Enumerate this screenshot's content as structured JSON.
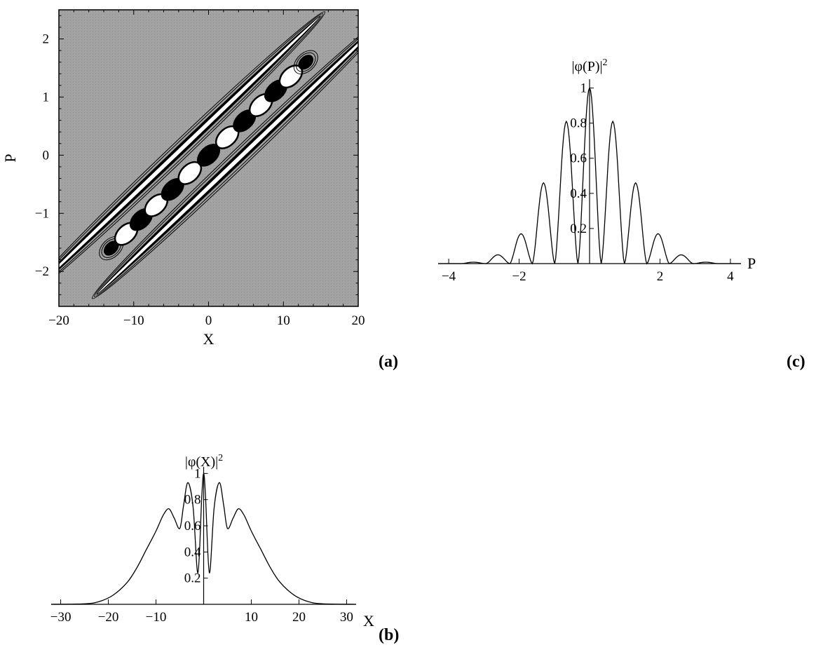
{
  "panel_tags": {
    "a": "(a)",
    "b": "(b)",
    "c": "(c)"
  },
  "chart_data": [
    {
      "id": "a",
      "type": "contour",
      "title": "",
      "xlabel": "X",
      "ylabel": "P",
      "xlim": [
        -20,
        20
      ],
      "ylim": [
        -2.6,
        2.5
      ],
      "xticks": [
        -20,
        -10,
        0,
        10,
        20
      ],
      "yticks": [
        -2,
        -1,
        0,
        1,
        2
      ],
      "xtick_labels": [
        "−20",
        "−10",
        "0",
        "10",
        "20"
      ],
      "ytick_labels": [
        "−2",
        "−1",
        "0",
        "1",
        "2"
      ],
      "background_color": "#a8a8a8",
      "ridge_slope": 0.123,
      "outer_lobes": [
        {
          "name": "",
          "offset_x": -4.5,
          "half_length": 19.5,
          "half_width": 1.6,
          "fill": "#ffffff"
        },
        {
          "name": "",
          "offset_x": 4.5,
          "half_length": 19.5,
          "half_width": 1.6,
          "fill": "#ffffff"
        }
      ],
      "central_blobs": [
        {
          "x": -13.0,
          "fill": "#000000"
        },
        {
          "x": -11.0,
          "fill": "#ffffff"
        },
        {
          "x": -9.0,
          "fill": "#000000"
        },
        {
          "x": -7.0,
          "fill": "#ffffff"
        },
        {
          "x": -4.8,
          "fill": "#000000"
        },
        {
          "x": -2.5,
          "fill": "#ffffff"
        },
        {
          "x": 0.0,
          "fill": "#000000"
        },
        {
          "x": 2.5,
          "fill": "#ffffff"
        },
        {
          "x": 4.8,
          "fill": "#000000"
        },
        {
          "x": 7.0,
          "fill": "#ffffff"
        },
        {
          "x": 9.0,
          "fill": "#000000"
        },
        {
          "x": 11.0,
          "fill": "#ffffff"
        },
        {
          "x": 13.0,
          "fill": "#000000"
        }
      ]
    },
    {
      "id": "b",
      "type": "line",
      "title": "",
      "xlabel": "X",
      "ylabel_base": "|φ(X)|",
      "ylabel_sup": "2",
      "xlim": [
        -32,
        32
      ],
      "ylim": [
        0,
        1.05
      ],
      "xticks": [
        -30,
        -20,
        -10,
        10,
        20,
        30
      ],
      "xtick_labels": [
        "−30",
        "−20",
        "−10",
        "10",
        "20",
        "30"
      ],
      "yticks": [
        0.2,
        0.4,
        0.6,
        0.8,
        1
      ],
      "ytick_labels": [
        "0.2",
        "0.4",
        "0.6",
        "0.8",
        "1"
      ],
      "series": [
        {
          "name": "",
          "x": [
            -32,
            -25,
            -22,
            -19,
            -16,
            -14,
            -12,
            -10,
            -8.5,
            -7.3,
            -6.2,
            -5.0,
            -4.2,
            -3.3,
            -2.2,
            -1.2,
            -0.4,
            0,
            0.4,
            1.2,
            2.2,
            3.3,
            4.2,
            5.0,
            6.2,
            7.3,
            8.5,
            10,
            12,
            14,
            16,
            19,
            22,
            25,
            32
          ],
          "y": [
            0,
            0.004,
            0.02,
            0.07,
            0.17,
            0.28,
            0.42,
            0.56,
            0.68,
            0.73,
            0.66,
            0.58,
            0.76,
            0.93,
            0.74,
            0.24,
            0.82,
            1.0,
            0.82,
            0.24,
            0.74,
            0.93,
            0.76,
            0.58,
            0.66,
            0.73,
            0.68,
            0.56,
            0.42,
            0.28,
            0.17,
            0.07,
            0.02,
            0.004,
            0
          ]
        }
      ]
    },
    {
      "id": "c",
      "type": "line",
      "title": "",
      "xlabel": "P",
      "ylabel_base": "|φ(P)|",
      "ylabel_sup": "2",
      "xlim": [
        -4.3,
        4.3
      ],
      "ylim": [
        0,
        1.05
      ],
      "xticks": [
        -4,
        -2,
        2,
        4
      ],
      "xtick_labels": [
        "−4",
        "−2",
        "2",
        "4"
      ],
      "yticks": [
        0.2,
        0.4,
        0.6,
        0.8,
        1
      ],
      "ytick_labels": [
        "0.2",
        "0.4",
        "0.6",
        "0.8",
        "1"
      ],
      "peaks": [
        {
          "x": -3.3,
          "y": 0.008
        },
        {
          "x": -2.6,
          "y": 0.05
        },
        {
          "x": -1.93,
          "y": 0.17
        },
        {
          "x": -1.32,
          "y": 0.46
        },
        {
          "x": -0.66,
          "y": 0.81
        },
        {
          "x": 0.0,
          "y": 1.0
        },
        {
          "x": 0.66,
          "y": 0.81
        },
        {
          "x": 1.32,
          "y": 0.46
        },
        {
          "x": 1.93,
          "y": 0.17
        },
        {
          "x": 2.6,
          "y": 0.05
        },
        {
          "x": 3.3,
          "y": 0.008
        }
      ]
    }
  ]
}
